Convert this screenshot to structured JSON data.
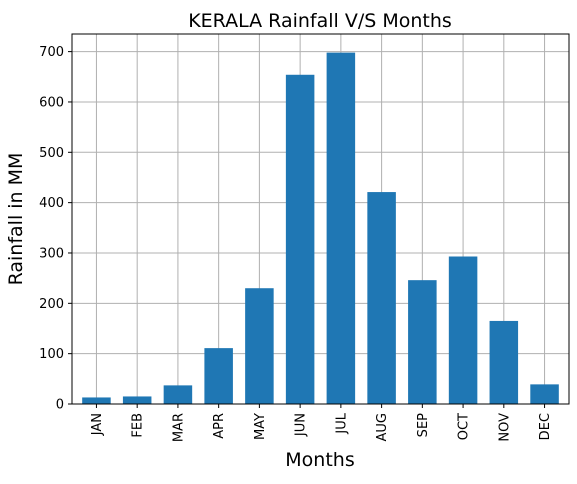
{
  "chart_data": {
    "type": "bar",
    "title": "KERALA Rainfall V/S Months",
    "xlabel": "Months",
    "ylabel": "Rainfall in MM",
    "categories": [
      "JAN",
      "FEB",
      "MAR",
      "APR",
      "MAY",
      "JUN",
      "JUL",
      "AUG",
      "SEP",
      "OCT",
      "NOV",
      "DEC"
    ],
    "values": [
      13,
      15,
      37,
      111,
      230,
      654,
      698,
      421,
      246,
      293,
      165,
      39
    ],
    "ylim": [
      0,
      735
    ],
    "yticks": [
      0,
      100,
      200,
      300,
      400,
      500,
      600,
      700
    ],
    "grid": true,
    "bar_color": "#1f77b4",
    "grid_color": "#b0b0b0"
  }
}
